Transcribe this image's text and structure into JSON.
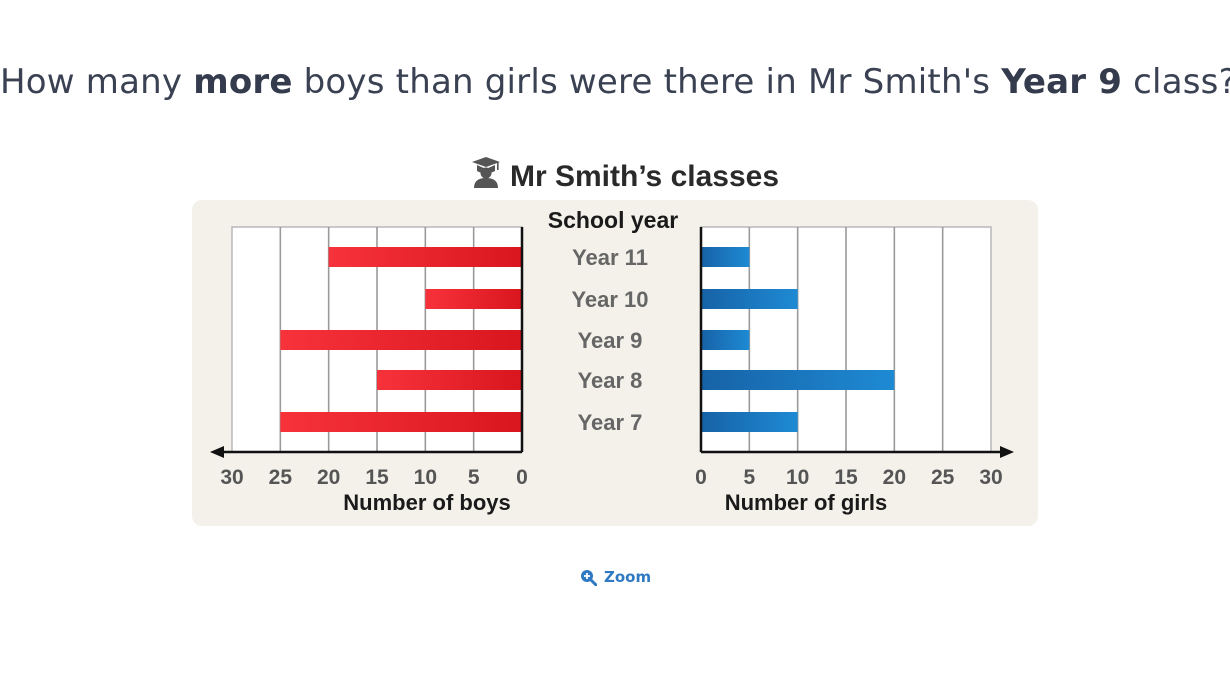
{
  "question": {
    "part1": "How many ",
    "bold1": "more",
    "part2": " boys than girls were there in Mr Smith's ",
    "bold2": "Year 9",
    "part3": " class?"
  },
  "chart_data": {
    "type": "bar",
    "title": "Mr Smith’s classes",
    "title_icon": "graduate-icon",
    "category_label": "School year",
    "categories": [
      "Year 11",
      "Year 10",
      "Year 9",
      "Year 8",
      "Year 7"
    ],
    "boys": {
      "xlabel": "Number of boys",
      "values": [
        20,
        10,
        25,
        15,
        25
      ],
      "ticks": [
        30,
        25,
        20,
        15,
        10,
        5,
        0
      ],
      "xlim": [
        0,
        30
      ],
      "color": "#e8202a",
      "direction": "leftward"
    },
    "girls": {
      "xlabel": "Number of girls",
      "values": [
        5,
        10,
        5,
        20,
        10
      ],
      "ticks": [
        0,
        5,
        10,
        15,
        20,
        25,
        30
      ],
      "xlim": [
        0,
        30
      ],
      "color": "#1a72b8",
      "direction": "rightward"
    },
    "grid": true
  },
  "zoom": {
    "label": "Zoom",
    "icon": "zoom-in-icon"
  }
}
